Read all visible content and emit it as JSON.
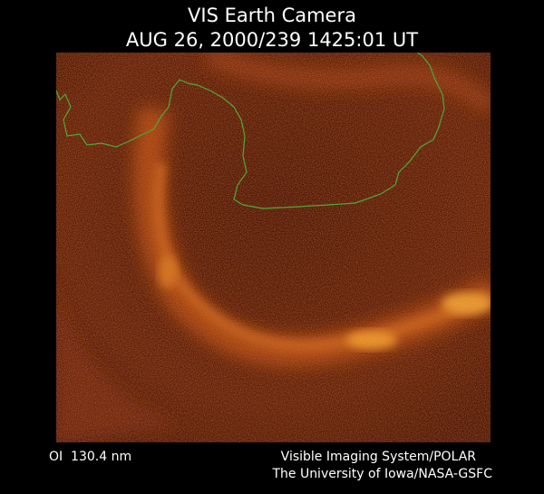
{
  "header": {
    "title": "VIS Earth Camera",
    "subtitle": "AUG 26, 2000/239 1425:01 UT"
  },
  "footer": {
    "filter": "OI  130.4 nm",
    "credit_lines": [
      "Visible Imaging System/POLAR",
      "The University of Iowa/NASA-GSFC"
    ]
  }
}
